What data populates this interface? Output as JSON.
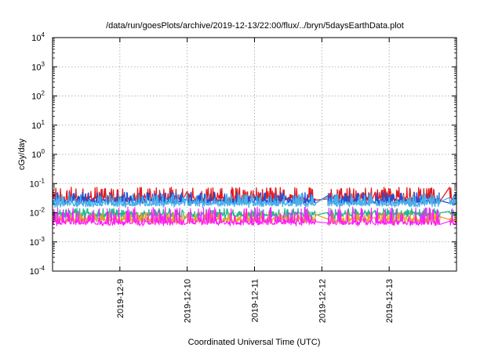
{
  "chart_data": {
    "type": "line",
    "title": "/data/run/goesPlots/archive/2019-12-13/22:00/flux/../bryn/5daysEarthData.plot",
    "xlabel": "Coordinated Universal Time (UTC)",
    "ylabel": "cGy/day",
    "yscale": "log",
    "ylim": [
      0.0001,
      10000
    ],
    "y_ticks": [
      {
        "value": 0.0001,
        "base": "10",
        "exp": "-4"
      },
      {
        "value": 0.001,
        "base": "10",
        "exp": "-3"
      },
      {
        "value": 0.01,
        "base": "10",
        "exp": "-2"
      },
      {
        "value": 0.1,
        "base": "10",
        "exp": "-1"
      },
      {
        "value": 1,
        "base": "10",
        "exp": "0"
      },
      {
        "value": 10,
        "base": "10",
        "exp": "1"
      },
      {
        "value": 100,
        "base": "10",
        "exp": "2"
      },
      {
        "value": 1000,
        "base": "10",
        "exp": "3"
      },
      {
        "value": 10000,
        "base": "10",
        "exp": "4"
      }
    ],
    "xlim": [
      "2019-12-08 00:00",
      "2019-12-14 00:00"
    ],
    "x_ticks": [
      "2019-12-9",
      "2019-12-10",
      "2019-12-11",
      "2019-12-12",
      "2019-12-13"
    ],
    "x_tick_dates": [
      "2019-12-09",
      "2019-12-10",
      "2019-12-11",
      "2019-12-12",
      "2019-12-13"
    ],
    "grid": true,
    "gaps": [
      {
        "from": "2019-12-09 23:00",
        "to": "2019-12-10 00:00"
      },
      {
        "from": "2019-12-11 21:50",
        "to": "2019-12-12 02:00"
      },
      {
        "from": "2019-12-12 18:00",
        "to": "2019-12-12 19:00"
      },
      {
        "from": "2019-12-13 18:10",
        "to": "2019-12-13 21:30"
      }
    ],
    "series": [
      {
        "color": "#e41a1c",
        "baseline": 0.03,
        "spike_max": 0.075,
        "dip_min": 0.022
      },
      {
        "color": "#1f4fd8",
        "baseline": 0.024,
        "spike_max": 0.05,
        "dip_min": 0.018
      },
      {
        "color": "#4ab0e8",
        "baseline": 0.02,
        "spike_max": 0.045,
        "dip_min": 0.015
      },
      {
        "color": "#20b890",
        "baseline": 0.0085,
        "spike_max": 0.014,
        "dip_min": 0.005
      },
      {
        "color": "#e8a020",
        "baseline": 0.0055,
        "spike_max": 0.01,
        "dip_min": 0.004
      },
      {
        "color": "#ff1aff",
        "baseline": 0.0045,
        "spike_max": 0.016,
        "dip_min": 0.0035
      }
    ]
  }
}
